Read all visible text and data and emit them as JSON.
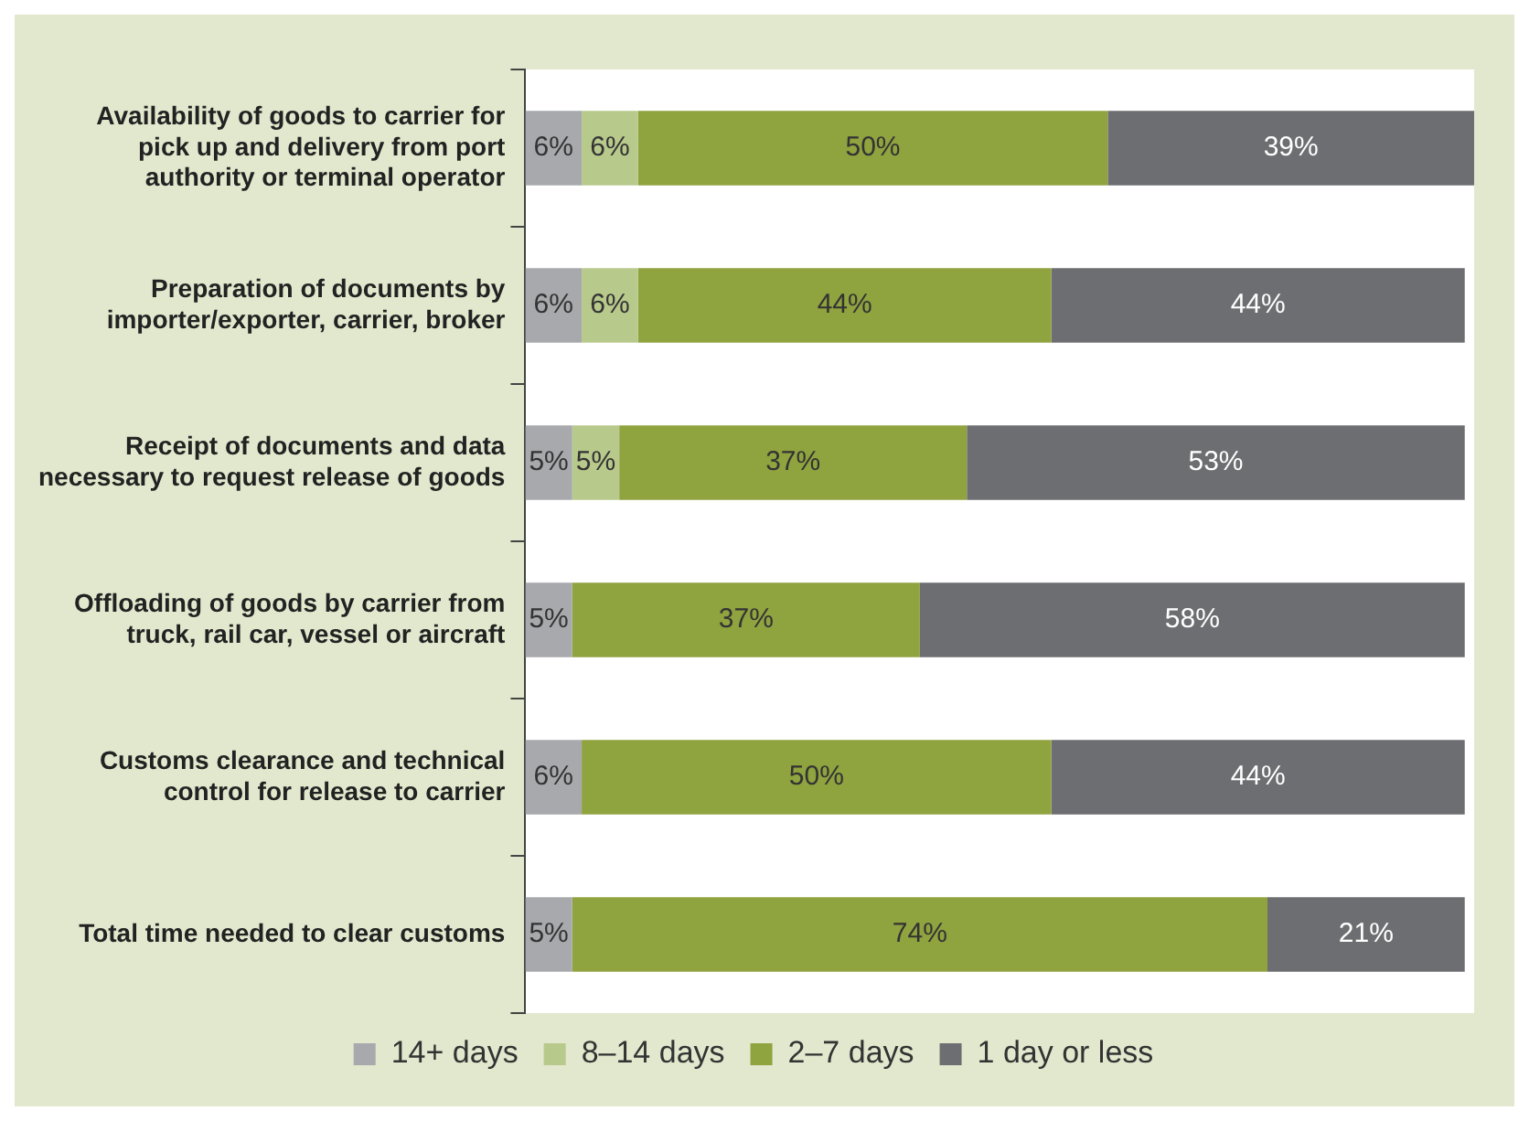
{
  "chart_data": {
    "type": "bar",
    "orientation": "horizontal",
    "stacked": true,
    "legend": "bottom",
    "grid": false,
    "tick_labels": "y",
    "categories": [
      "Availability of goods to carrier for pick up and delivery from port authority or terminal operator",
      "Preparation of documents by importer/exporter, carrier, broker",
      "Receipt of documents and data necessary to request release of goods",
      "Offloading of goods by carrier from truck, rail car, vessel or aircraft",
      "Customs clearance and technical control for release to carrier",
      "Total time needed to clear customs"
    ],
    "series": [
      {
        "name": "14+ days",
        "color": "#a7a9ac",
        "values": [
          6,
          6,
          5,
          5,
          6,
          5
        ],
        "value_labels": [
          "6%",
          "6%",
          "5%",
          "5%",
          "6%",
          "5%"
        ]
      },
      {
        "name": "8–14 days",
        "color": "#b8c98c",
        "values": [
          6,
          6,
          5,
          null,
          null,
          null
        ],
        "value_labels": [
          "6%",
          "6%",
          "5%",
          null,
          null,
          null
        ]
      },
      {
        "name": "2–7 days",
        "color": "#8fa33f",
        "values": [
          50,
          44,
          37,
          37,
          50,
          74
        ],
        "value_labels": [
          "50%",
          "44%",
          "37%",
          "37%",
          "50%",
          "74%"
        ]
      },
      {
        "name": "1 day or less",
        "color": "#6d6e71",
        "values": [
          39,
          44,
          53,
          58,
          44,
          21
        ],
        "value_labels": [
          "39%",
          "44%",
          "53%",
          "58%",
          "44%",
          "21%"
        ]
      }
    ]
  }
}
